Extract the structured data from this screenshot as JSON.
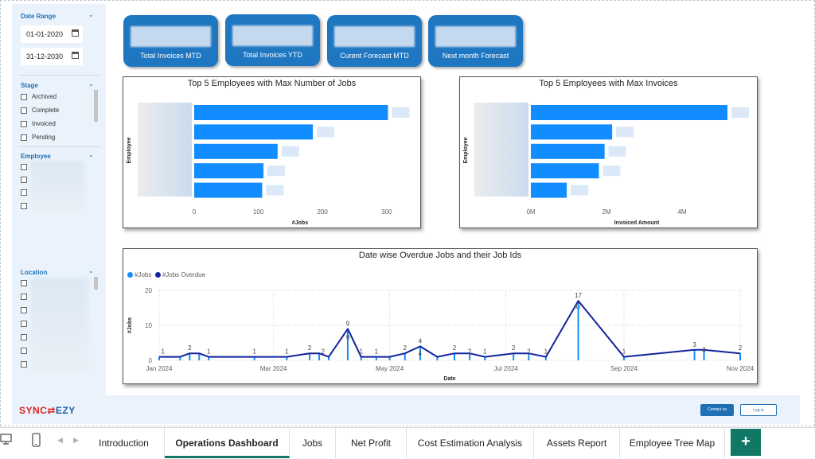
{
  "slicers": {
    "date_range": {
      "title": "Date Range",
      "start": "01-01-2020",
      "end": "31-12-2030"
    },
    "stage": {
      "title": "Stage",
      "options": [
        "Archived",
        "Complete",
        "Invoiced",
        "Pending"
      ]
    },
    "employee": {
      "title": "Employee"
    },
    "location": {
      "title": "Location"
    }
  },
  "kpis": [
    {
      "label": "Total Invoices MTD"
    },
    {
      "label": "Total Invoices YTD"
    },
    {
      "label": "Curent Forecast MTD"
    },
    {
      "label": "Next month Forecast"
    }
  ],
  "colors": {
    "bar": "#118dff",
    "line_jobs": "#118dff",
    "line_overdue": "#12239e",
    "kpi": "#1f77c1",
    "accent_tab": "#117865"
  },
  "chart_data": [
    {
      "type": "bar",
      "orientation": "horizontal",
      "title": "Top 5 Employees with Max Number of Jobs",
      "xlabel": "#Jobs",
      "ylabel": "Employee",
      "xlim": [
        0,
        330
      ],
      "ticks": [
        "0",
        "100",
        "200",
        "300"
      ],
      "tick_values": [
        0,
        100,
        200,
        300
      ],
      "values": [
        302,
        185,
        130,
        108,
        106
      ]
    },
    {
      "type": "bar",
      "orientation": "horizontal",
      "title": "Top 5 Employees with Max Invoices",
      "xlabel": "Invoiced Amount",
      "ylabel": "Employee",
      "xlim": [
        0,
        5.6
      ],
      "ticks": [
        "0M",
        "2M",
        "4M"
      ],
      "tick_values": [
        0,
        2,
        4
      ],
      "values": [
        5.2,
        2.15,
        1.95,
        1.8,
        0.95
      ]
    },
    {
      "type": "line",
      "title": "Date wise Overdue Jobs and their Job Ids",
      "xlabel": "Date",
      "ylabel": "#Jobs",
      "ylim": [
        0,
        20
      ],
      "y_ticks": [
        0,
        10,
        20
      ],
      "legend": "top-left",
      "x_ticks": [
        {
          "label": "Jan 2024",
          "date": "2024-01-01"
        },
        {
          "label": "Mar 2024",
          "date": "2024-03-01"
        },
        {
          "label": "May 2024",
          "date": "2024-05-01"
        },
        {
          "label": "Jul 2024",
          "date": "2024-07-01"
        },
        {
          "label": "Sep 2024",
          "date": "2024-09-01"
        },
        {
          "label": "Nov 2024",
          "date": "2024-11-01"
        }
      ],
      "series": [
        {
          "name": "#Jobs",
          "points": [
            [
              "2024-01-01",
              1
            ],
            [
              "2024-01-12",
              1
            ],
            [
              "2024-01-17",
              2
            ],
            [
              "2024-01-22",
              2
            ],
            [
              "2024-01-27",
              1
            ],
            [
              "2024-02-20",
              1
            ],
            [
              "2024-03-08",
              1
            ],
            [
              "2024-03-20",
              2
            ],
            [
              "2024-03-25",
              2
            ],
            [
              "2024-03-30",
              1
            ],
            [
              "2024-04-09",
              9
            ],
            [
              "2024-04-16",
              1
            ],
            [
              "2024-04-24",
              1
            ],
            [
              "2024-05-01",
              1
            ],
            [
              "2024-05-09",
              2
            ],
            [
              "2024-05-17",
              4
            ],
            [
              "2024-05-26",
              1
            ],
            [
              "2024-06-04",
              2
            ],
            [
              "2024-06-12",
              2
            ],
            [
              "2024-06-20",
              1
            ],
            [
              "2024-07-05",
              2
            ],
            [
              "2024-07-13",
              2
            ],
            [
              "2024-07-22",
              1
            ],
            [
              "2024-08-08",
              17
            ],
            [
              "2024-09-01",
              1
            ],
            [
              "2024-10-08",
              3
            ],
            [
              "2024-10-13",
              3
            ],
            [
              "2024-11-01",
              2
            ]
          ]
        },
        {
          "name": "#Jobs Overdue",
          "points": [
            [
              "2024-01-01",
              1
            ],
            [
              "2024-01-12",
              1
            ],
            [
              "2024-01-17",
              2
            ],
            [
              "2024-01-22",
              2
            ],
            [
              "2024-01-27",
              1
            ],
            [
              "2024-02-20",
              1
            ],
            [
              "2024-03-08",
              1
            ],
            [
              "2024-03-20",
              2
            ],
            [
              "2024-03-25",
              2
            ],
            [
              "2024-03-30",
              1
            ],
            [
              "2024-04-09",
              9
            ],
            [
              "2024-04-16",
              1
            ],
            [
              "2024-04-24",
              1
            ],
            [
              "2024-05-01",
              1
            ],
            [
              "2024-05-09",
              2
            ],
            [
              "2024-05-17",
              4
            ],
            [
              "2024-05-26",
              1
            ],
            [
              "2024-06-04",
              2
            ],
            [
              "2024-06-12",
              2
            ],
            [
              "2024-06-20",
              1
            ],
            [
              "2024-07-05",
              2
            ],
            [
              "2024-07-13",
              2
            ],
            [
              "2024-07-22",
              1
            ],
            [
              "2024-08-08",
              17
            ],
            [
              "2024-09-01",
              1
            ],
            [
              "2024-10-08",
              3
            ],
            [
              "2024-10-13",
              3
            ],
            [
              "2024-11-01",
              2
            ]
          ]
        }
      ],
      "data_labels": [
        [
          "2024-01-03",
          1,
          "1"
        ],
        [
          "2024-01-17",
          2,
          "2"
        ],
        [
          "2024-01-27",
          1,
          "1"
        ],
        [
          "2024-02-20",
          1,
          "1"
        ],
        [
          "2024-03-08",
          1,
          "1"
        ],
        [
          "2024-03-20",
          2,
          "2"
        ],
        [
          "2024-03-27",
          1,
          "2"
        ],
        [
          "2024-04-09",
          9,
          "9"
        ],
        [
          "2024-04-09",
          5,
          "9"
        ],
        [
          "2024-04-16",
          1,
          "1"
        ],
        [
          "2024-04-24",
          1,
          "1"
        ],
        [
          "2024-05-09",
          2,
          "2"
        ],
        [
          "2024-05-17",
          4,
          "4"
        ],
        [
          "2024-05-17",
          0.5,
          "4"
        ],
        [
          "2024-06-04",
          2,
          "2"
        ],
        [
          "2024-06-12",
          1,
          "2"
        ],
        [
          "2024-06-20",
          1,
          "1"
        ],
        [
          "2024-07-05",
          2,
          "2"
        ],
        [
          "2024-07-13",
          1,
          "2"
        ],
        [
          "2024-07-22",
          1,
          "1"
        ],
        [
          "2024-08-08",
          17,
          "17"
        ],
        [
          "2024-08-08",
          14,
          "17"
        ],
        [
          "2024-09-01",
          1,
          "1"
        ],
        [
          "2024-10-08",
          3,
          "3"
        ],
        [
          "2024-10-13",
          1.5,
          "3"
        ],
        [
          "2024-11-01",
          2,
          "2"
        ]
      ]
    }
  ],
  "footer": {
    "brand_part1": "SYNC",
    "brand_part2": "EZY",
    "contact_button": "Contact us",
    "login_button": "Log in"
  },
  "tabs": [
    {
      "label": "Introduction",
      "active": false
    },
    {
      "label": "Operations Dashboard",
      "active": true
    },
    {
      "label": "Jobs",
      "active": false
    },
    {
      "label": "Net Profit",
      "active": false
    },
    {
      "label": "Cost Estimation Analysis",
      "active": false
    },
    {
      "label": "Assets Report",
      "active": false
    },
    {
      "label": "Employee Tree Map",
      "active": false
    }
  ],
  "add_tab_label": "+"
}
